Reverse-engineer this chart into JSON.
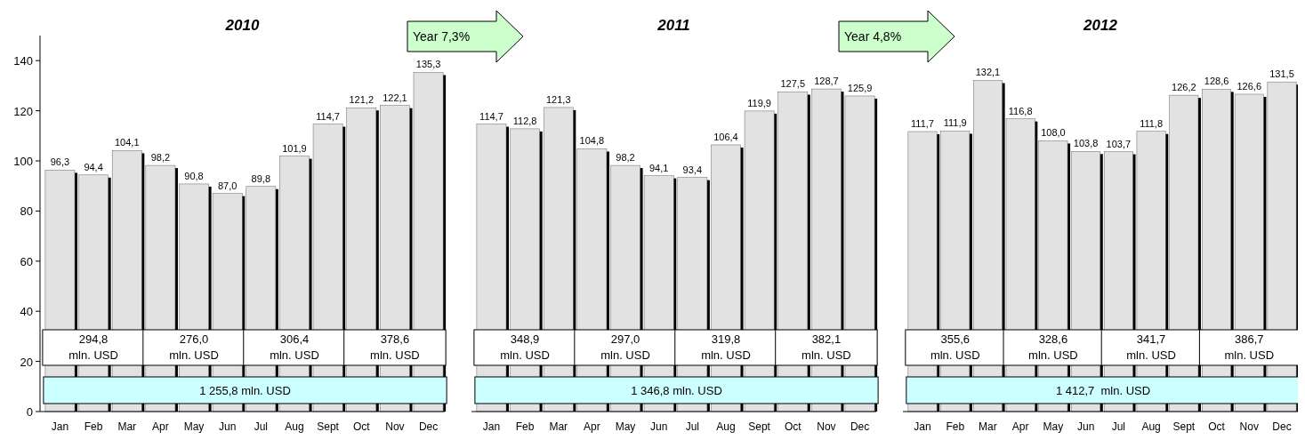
{
  "chart_data": [
    {
      "type": "bar",
      "title": "2010",
      "categories": [
        "Jan",
        "Feb",
        "Mar",
        "Apr",
        "May",
        "Jun",
        "Jul",
        "Aug",
        "Sept",
        "Oct",
        "Nov",
        "Dec"
      ],
      "values": [
        96.3,
        94.4,
        104.1,
        98.2,
        90.8,
        87.0,
        89.8,
        101.9,
        114.7,
        121.2,
        122.1,
        135.3
      ],
      "value_labels": [
        "96,3",
        "94,4",
        "104,1",
        "98,2",
        "90,8",
        "87,0",
        "89,8",
        "101,9",
        "114,7",
        "121,2",
        "122,1",
        "135,3"
      ],
      "color": "#e2e2e2",
      "ylim": [
        0,
        150
      ],
      "yticks": [
        0,
        20,
        40,
        60,
        80,
        100,
        120,
        140
      ],
      "annotations": [
        "294,8\nmln. USD",
        "276,0\nmln. USD",
        "306,4\nmln. USD",
        "378,6\nmln. USD",
        "1 255,8 mln. USD"
      ]
    },
    {
      "type": "bar",
      "title": "2011",
      "categories": [
        "Jan",
        "Feb",
        "Mar",
        "Apr",
        "May",
        "Jun",
        "Jul",
        "Aug",
        "Sept",
        "Oct",
        "Nov",
        "Dec"
      ],
      "values": [
        114.7,
        112.8,
        121.3,
        104.8,
        98.2,
        94.1,
        93.4,
        106.4,
        119.9,
        127.5,
        128.7,
        125.9
      ],
      "value_labels": [
        "114,7",
        "112,8",
        "121,3",
        "104,8",
        "98,2",
        "94,1",
        "93,4",
        "106,4",
        "119,9",
        "127,5",
        "128,7",
        "125,9"
      ],
      "color": "#e2e2e2",
      "tick_labels": "x",
      "annotations": [
        "348,9\nmln. USD",
        "297,0\nmln. USD",
        "319,8\nmln. USD",
        "382,1\nmln. USD",
        "1 346,8 mln. USD",
        "Year 7,3%"
      ]
    },
    {
      "type": "bar",
      "title": "2012",
      "categories": [
        "Jan",
        "Feb",
        "Mar",
        "Apr",
        "May",
        "Jun",
        "Jul",
        "Aug",
        "Sept",
        "Oct",
        "Nov",
        "Dec"
      ],
      "values": [
        111.7,
        111.9,
        132.1,
        116.8,
        108.0,
        103.8,
        103.7,
        111.8,
        126.2,
        128.6,
        126.6,
        131.5
      ],
      "value_labels": [
        "111,7",
        "111,9",
        "132,1",
        "116,8",
        "108,0",
        "103,8",
        "103,7",
        "111,8",
        "126,2",
        "128,6",
        "126,6",
        "131,5"
      ],
      "color": "#e2e2e2",
      "tick_labels": "x",
      "annotations": [
        "355,6\nmln. USD",
        "328,6\nmln. USD",
        "341,7\nmln. USD",
        "386,7\nmln. USD",
        "1 412,7  mln. USD",
        "Year 4,8%"
      ]
    }
  ]
}
